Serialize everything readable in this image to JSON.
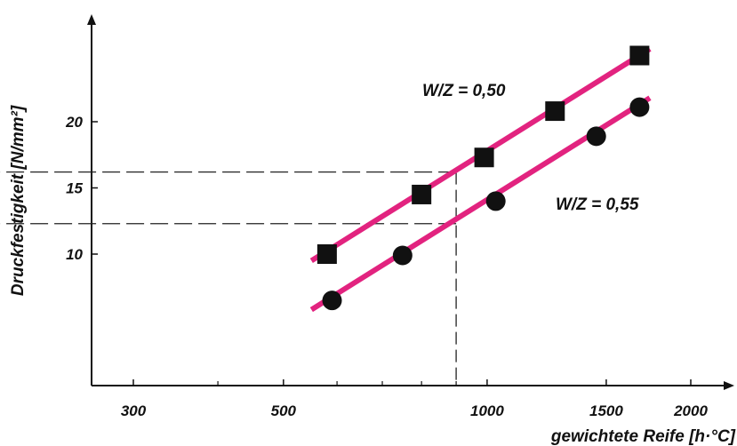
{
  "chart_data": {
    "type": "scatter",
    "title": "",
    "xlabel": "gewichtete Reife [h·°C]",
    "ylabel": "Druckfestigkeit [N/mm²]",
    "x_scale": "log",
    "xlim": [
      210,
      2600
    ],
    "ylim": [
      0,
      27
    ],
    "x_ticks": [
      300,
      500,
      1000,
      1500,
      2000
    ],
    "x_tick_labels": [
      "300",
      "500",
      "1000",
      "1500",
      "2000"
    ],
    "x_minor_ticks": [
      400,
      600,
      700,
      800,
      900
    ],
    "y_ticks": [
      10,
      15,
      20
    ],
    "y_tick_labels": [
      "10",
      "15",
      "20"
    ],
    "grid": false,
    "colors": {
      "series_line": "#e2237f",
      "marker": "#111111",
      "axis": "#111111",
      "guide": "#222222"
    },
    "series": [
      {
        "name": "W/Z = 0,50",
        "marker": "square",
        "x": [
          580,
          800,
          990,
          1260,
          1680
        ],
        "y": [
          10.0,
          14.5,
          17.3,
          20.8,
          25.0
        ],
        "fit_line": {
          "x": [
            550,
            1740
          ],
          "y": [
            9.5,
            25.5
          ]
        }
      },
      {
        "name": "W/Z = 0,55",
        "marker": "circle",
        "x": [
          590,
          750,
          1030,
          1450,
          1680
        ],
        "y": [
          6.5,
          9.9,
          14.0,
          18.9,
          21.1
        ],
        "fit_line": {
          "x": [
            550,
            1740
          ],
          "y": [
            5.8,
            21.8
          ]
        }
      }
    ],
    "annotations": [
      {
        "type": "vertical-guide",
        "x": 900,
        "y_from": 0,
        "y_to": 16.2
      },
      {
        "type": "horizontal-guide-arrow",
        "y": 16.2,
        "x_from": 900,
        "x_to": 230
      },
      {
        "type": "horizontal-guide-arrow",
        "y": 12.3,
        "x_from": 900,
        "x_to": 230
      }
    ]
  }
}
